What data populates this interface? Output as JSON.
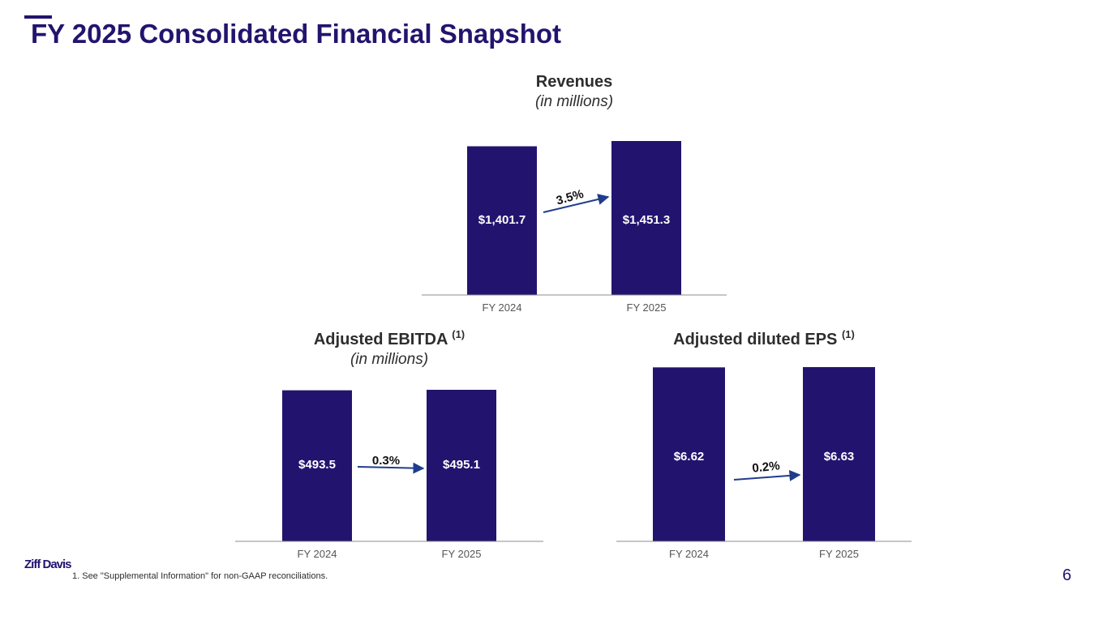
{
  "page": {
    "title": "FY 2025 Consolidated Financial Snapshot",
    "footnote": "1.   See \"Supplemental Information\" for non-GAAP reconciliations.",
    "page_number": "6",
    "logo_text": "Ziff Davis"
  },
  "colors": {
    "bar": "#22146e",
    "arrow": "#203d8c",
    "axis": "#8c8c8c",
    "accent": "#22146e"
  },
  "chart_data": [
    {
      "type": "bar",
      "title": "Revenues",
      "subtitle": "(in millions)",
      "footnote_marker": "",
      "categories": [
        "FY 2024",
        "FY 2025"
      ],
      "values": [
        1401.7,
        1451.3
      ],
      "value_labels": [
        "$1,401.7",
        "$1,451.3"
      ],
      "growth_label": "3.5%",
      "ylim": [
        0,
        1451.3
      ]
    },
    {
      "type": "bar",
      "title": "Adjusted EBITDA",
      "subtitle": "(in millions)",
      "footnote_marker": "(1)",
      "categories": [
        "FY 2024",
        "FY 2025"
      ],
      "values": [
        493.5,
        495.1
      ],
      "value_labels": [
        "$493.5",
        "$495.1"
      ],
      "growth_label": "0.3%",
      "ylim": [
        0,
        495.1
      ]
    },
    {
      "type": "bar",
      "title": "Adjusted diluted EPS",
      "subtitle": "",
      "footnote_marker": "(1)",
      "categories": [
        "FY 2024",
        "FY 2025"
      ],
      "values": [
        6.62,
        6.63
      ],
      "value_labels": [
        "$6.62",
        "$6.63"
      ],
      "growth_label": "0.2%",
      "ylim": [
        0,
        6.63
      ]
    }
  ]
}
